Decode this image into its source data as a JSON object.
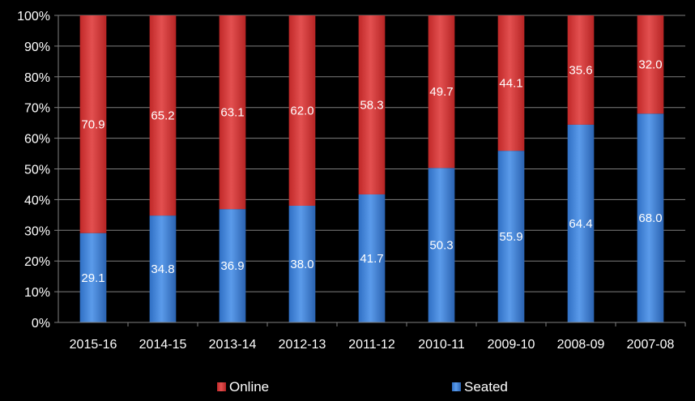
{
  "chart_data": {
    "type": "bar",
    "stacked": true,
    "normalized": true,
    "categories": [
      "2015-16",
      "2014-15",
      "2013-14",
      "2012-13",
      "2011-12",
      "2010-11",
      "2009-10",
      "2008-09",
      "2007-08"
    ],
    "series": [
      {
        "name": "Seated",
        "values": [
          29.1,
          34.8,
          36.9,
          38.0,
          41.7,
          50.3,
          55.9,
          64.4,
          68.0
        ],
        "color": "#4a86d6"
      },
      {
        "name": "Online",
        "values": [
          70.9,
          65.2,
          63.1,
          62.0,
          58.3,
          49.7,
          44.1,
          35.6,
          32.0
        ],
        "color": "#d43c3c"
      }
    ],
    "ylim": [
      0,
      100
    ],
    "yticks": [
      "0%",
      "10%",
      "20%",
      "30%",
      "40%",
      "50%",
      "60%",
      "70%",
      "80%",
      "90%",
      "100%"
    ],
    "grid": true,
    "legend_position": "bottom",
    "legend_order": [
      "Online",
      "Seated"
    ],
    "background": "#000000",
    "gridline_color": "#7f7f7f"
  }
}
